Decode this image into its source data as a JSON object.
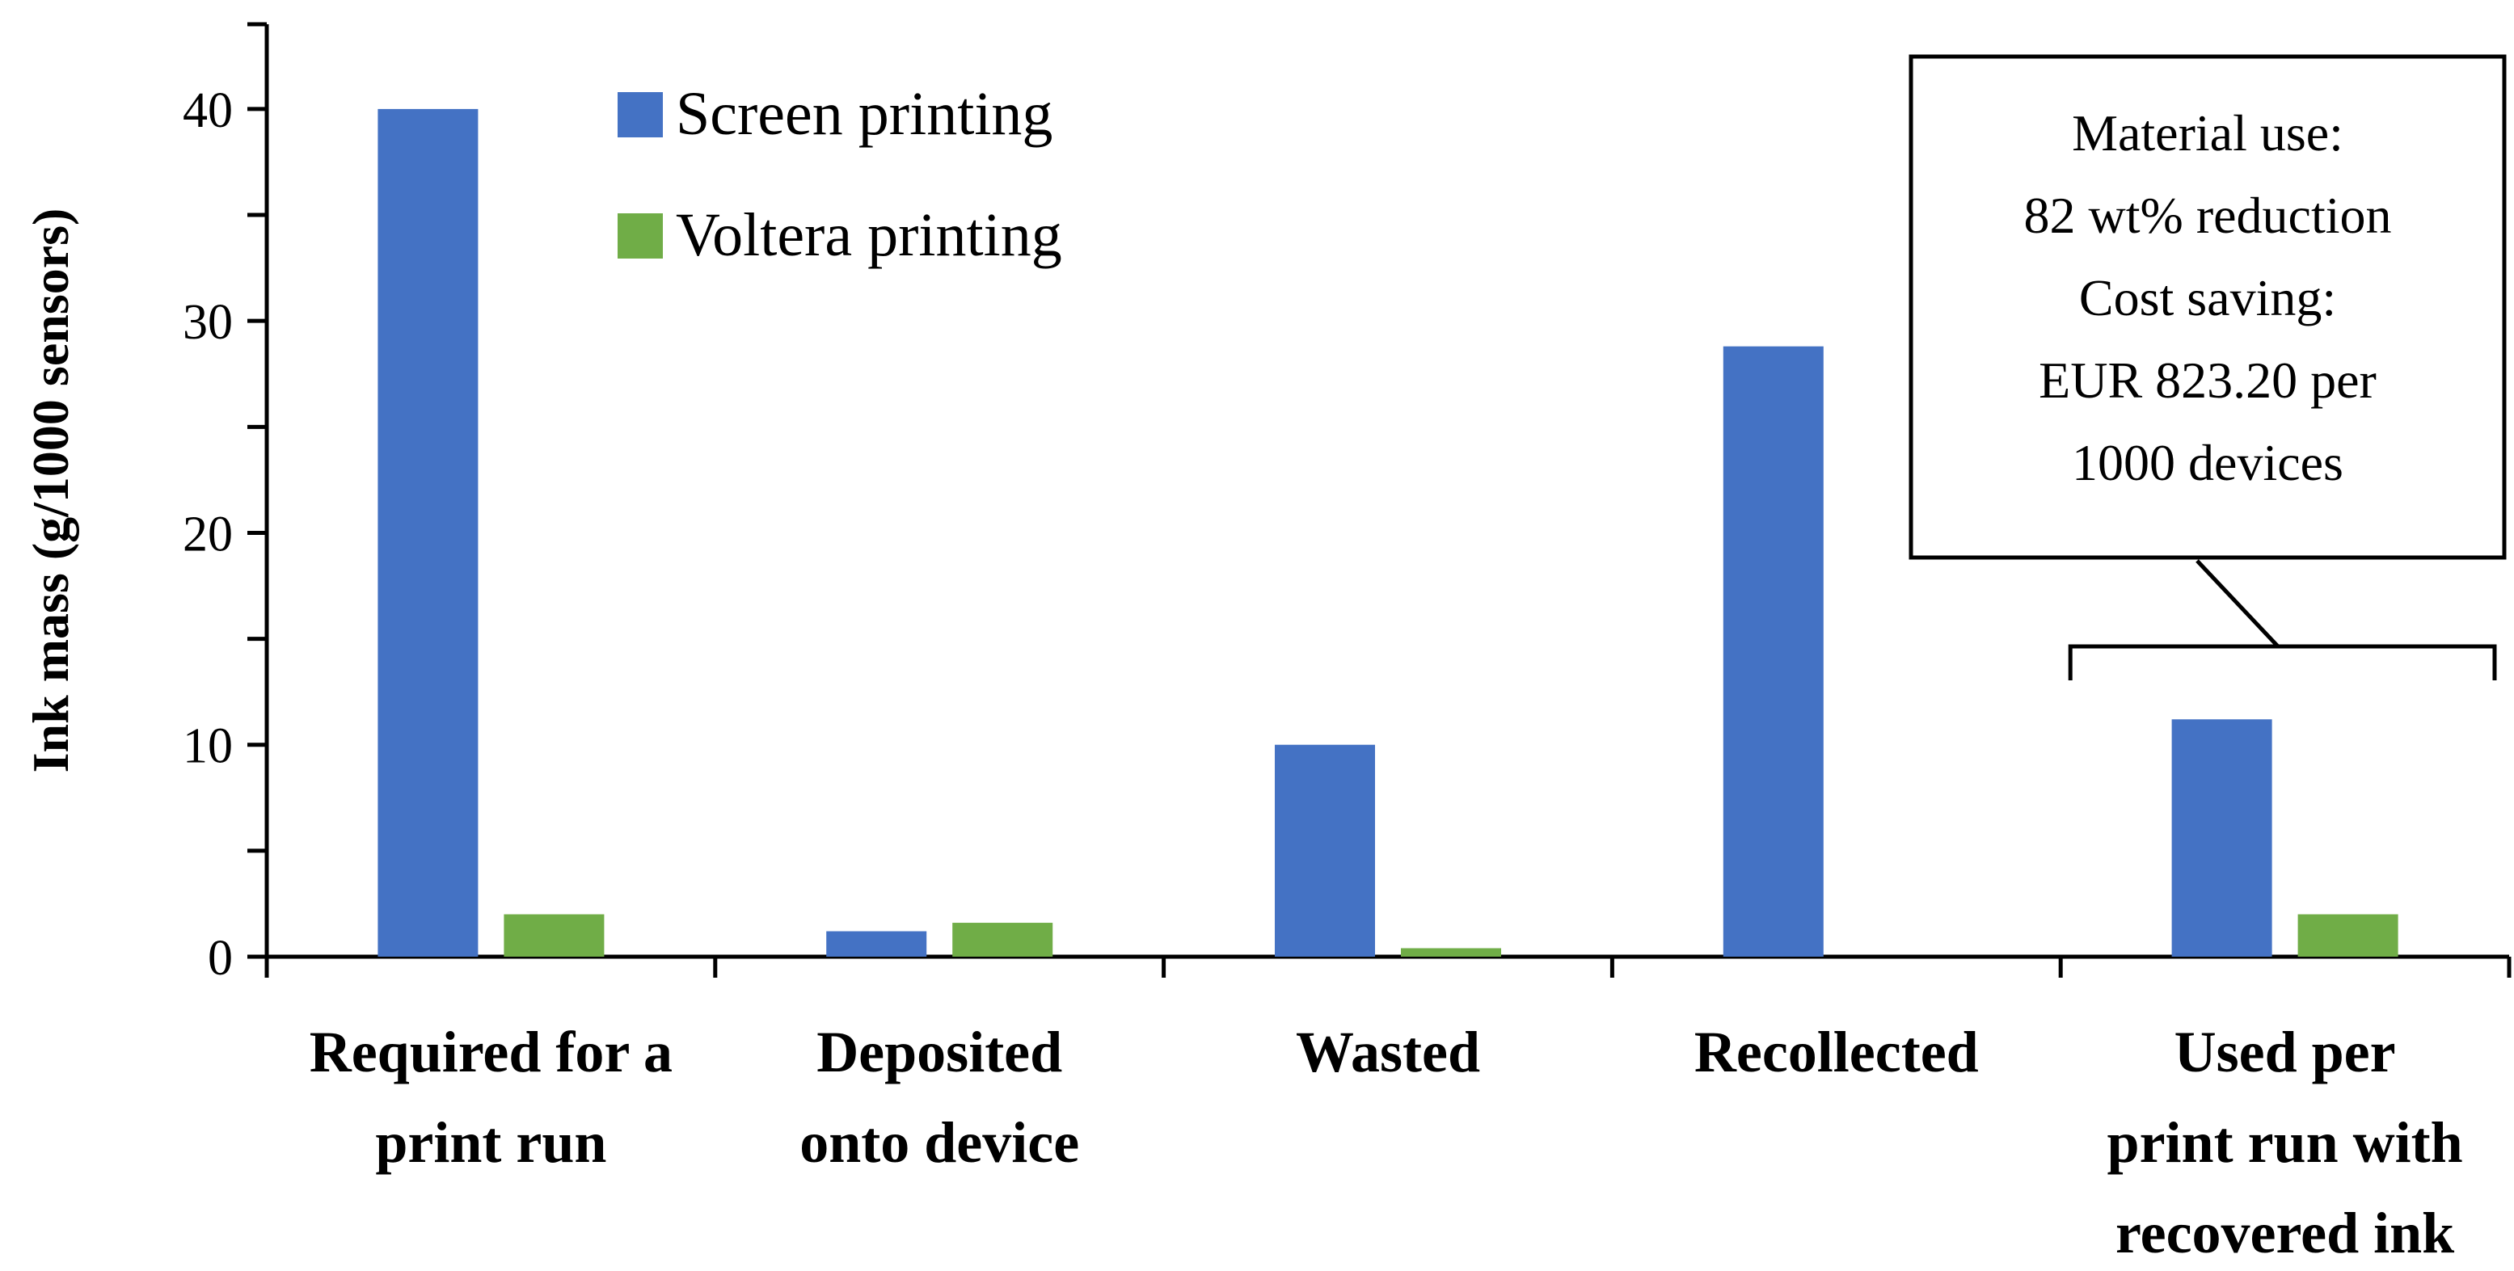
{
  "chart_data": {
    "type": "bar",
    "ylabel": "Ink mass (g/1000 sensors)",
    "xlabel": "",
    "ylim": [
      0,
      44
    ],
    "yticks": [
      0,
      10,
      20,
      30,
      40
    ],
    "categories": [
      [
        "Required for a",
        "print run"
      ],
      [
        "Deposited",
        "onto device"
      ],
      [
        "Wasted"
      ],
      [
        "Recollected"
      ],
      [
        "Used per",
        "print run with",
        "recovered ink"
      ]
    ],
    "series": [
      {
        "name": "Screen printing",
        "color": "#4472C4",
        "values": [
          40.0,
          1.2,
          10.0,
          28.8,
          11.2
        ]
      },
      {
        "name": "Voltera printing",
        "color": "#70AD47",
        "values": [
          2.0,
          1.6,
          0.4,
          0.0,
          2.0
        ]
      }
    ],
    "legend": "top-left",
    "grid": false,
    "annotation": {
      "category_index": 4,
      "lines": [
        "Material use:",
        "82 wt% reduction",
        "Cost saving:",
        "EUR 823.20 per",
        "1000 devices"
      ]
    }
  }
}
